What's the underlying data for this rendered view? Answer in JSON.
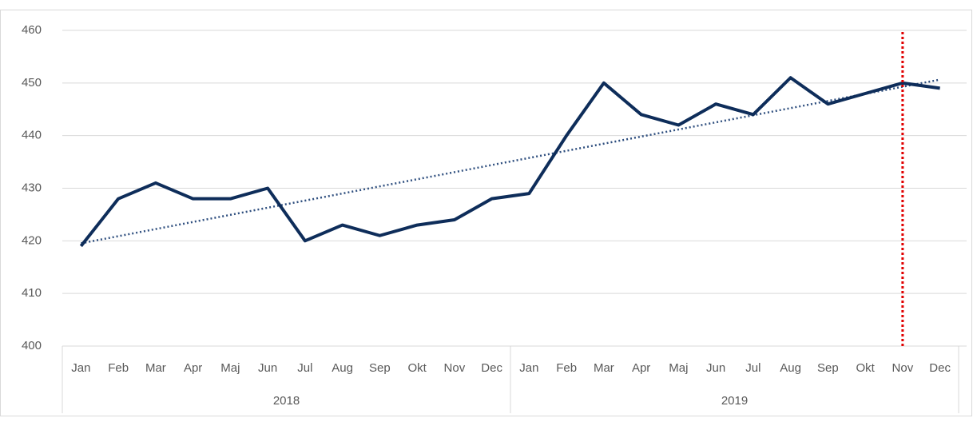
{
  "chart_data": {
    "type": "line",
    "groups": [
      {
        "label": "2018",
        "categories": [
          "Jan",
          "Feb",
          "Mar",
          "Apr",
          "Maj",
          "Jun",
          "Jul",
          "Aug",
          "Sep",
          "Okt",
          "Nov",
          "Dec"
        ]
      },
      {
        "label": "2019",
        "categories": [
          "Jan",
          "Feb",
          "Mar",
          "Apr",
          "Maj",
          "Jun",
          "Jul",
          "Aug",
          "Sep",
          "Okt",
          "Nov",
          "Dec"
        ]
      }
    ],
    "values": [
      419,
      428,
      431,
      428,
      428,
      430,
      420,
      423,
      421,
      423,
      424,
      428,
      429,
      440,
      450,
      444,
      442,
      446,
      444,
      451,
      446,
      448,
      450,
      449
    ],
    "color": "#0e2d5a",
    "ylim": [
      400,
      460
    ],
    "yticks": [
      400,
      410,
      420,
      430,
      440,
      450,
      460
    ],
    "grid": true,
    "trendline": {
      "kind": "linear",
      "color": "#2f4f7f",
      "style": "dotted"
    },
    "vline": {
      "group": "2019",
      "category": "Nov",
      "color": "#e00000",
      "style": "dotted"
    }
  }
}
